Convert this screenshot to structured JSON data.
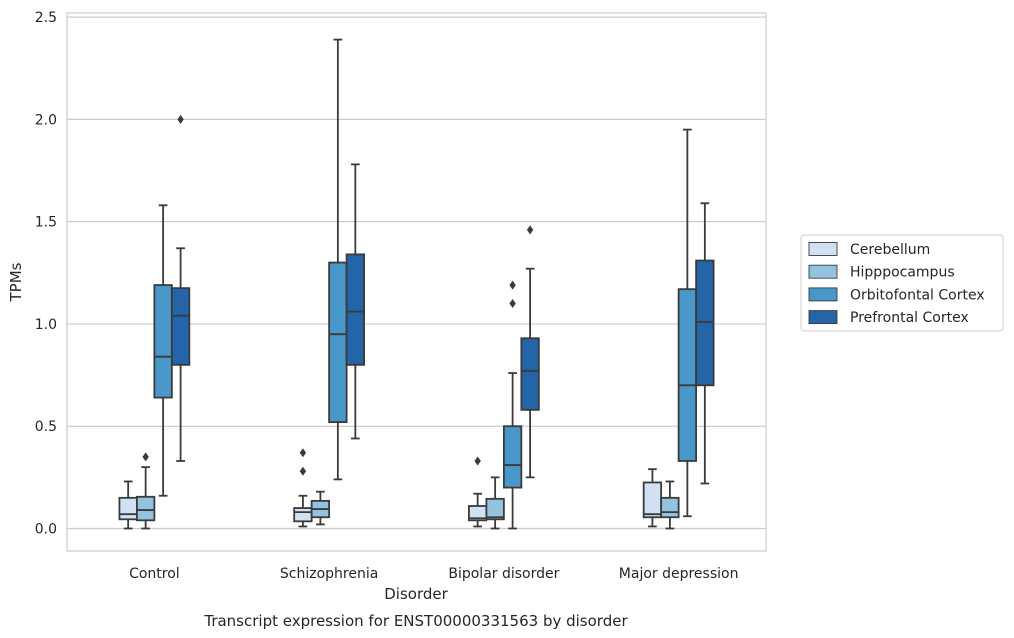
{
  "chart_data": {
    "type": "boxplot",
    "title": "",
    "caption": "Transcript expression for ENST00000331563 by disorder",
    "xlabel": "Disorder",
    "ylabel": "TPMs",
    "ylim": [
      -0.11,
      2.52
    ],
    "yticks": [
      "0.0",
      "0.5",
      "1.0",
      "1.5",
      "2.0",
      "2.5"
    ],
    "grid": true,
    "legend_position": "right",
    "categories": [
      "Control",
      "Schizophrenia",
      "Bipolar disorder",
      "Major depression"
    ],
    "series": [
      {
        "name": "Cerebellum",
        "color": "#cfe1f2",
        "boxes": [
          {
            "whisker_low": 0.0,
            "q1": 0.045,
            "median": 0.07,
            "q3": 0.15,
            "whisker_high": 0.23,
            "outliers": []
          },
          {
            "whisker_low": 0.01,
            "q1": 0.035,
            "median": 0.08,
            "q3": 0.1,
            "whisker_high": 0.16,
            "outliers": [
              0.37,
              0.28
            ]
          },
          {
            "whisker_low": 0.01,
            "q1": 0.04,
            "median": 0.05,
            "q3": 0.11,
            "whisker_high": 0.17,
            "outliers": [
              0.33
            ]
          },
          {
            "whisker_low": 0.01,
            "q1": 0.055,
            "median": 0.07,
            "q3": 0.225,
            "whisker_high": 0.29,
            "outliers": []
          }
        ]
      },
      {
        "name": "Hipppocampus",
        "color": "#93c3df",
        "boxes": [
          {
            "whisker_low": 0.0,
            "q1": 0.04,
            "median": 0.09,
            "q3": 0.155,
            "whisker_high": 0.3,
            "outliers": [
              0.35
            ]
          },
          {
            "whisker_low": 0.02,
            "q1": 0.055,
            "median": 0.095,
            "q3": 0.135,
            "whisker_high": 0.18,
            "outliers": []
          },
          {
            "whisker_low": 0.0,
            "q1": 0.045,
            "median": 0.055,
            "q3": 0.145,
            "whisker_high": 0.25,
            "outliers": []
          },
          {
            "whisker_low": 0.0,
            "q1": 0.055,
            "median": 0.08,
            "q3": 0.15,
            "whisker_high": 0.23,
            "outliers": []
          }
        ]
      },
      {
        "name": "Orbitofontal Cortex",
        "color": "#4a98c9",
        "boxes": [
          {
            "whisker_low": 0.16,
            "q1": 0.64,
            "median": 0.84,
            "q3": 1.19,
            "whisker_high": 1.58,
            "outliers": []
          },
          {
            "whisker_low": 0.24,
            "q1": 0.52,
            "median": 0.95,
            "q3": 1.3,
            "whisker_high": 2.39,
            "outliers": []
          },
          {
            "whisker_low": 0.0,
            "q1": 0.2,
            "median": 0.31,
            "q3": 0.5,
            "whisker_high": 0.76,
            "outliers": [
              1.19,
              1.1
            ]
          },
          {
            "whisker_low": 0.06,
            "q1": 0.33,
            "median": 0.7,
            "q3": 1.17,
            "whisker_high": 1.95,
            "outliers": []
          }
        ]
      },
      {
        "name": "Prefrontal Cortex",
        "color": "#2464a8",
        "boxes": [
          {
            "whisker_low": 0.33,
            "q1": 0.8,
            "median": 1.04,
            "q3": 1.175,
            "whisker_high": 1.37,
            "outliers": [
              2.0
            ]
          },
          {
            "whisker_low": 0.44,
            "q1": 0.8,
            "median": 1.06,
            "q3": 1.34,
            "whisker_high": 1.78,
            "outliers": []
          },
          {
            "whisker_low": 0.25,
            "q1": 0.58,
            "median": 0.77,
            "q3": 0.93,
            "whisker_high": 1.27,
            "outliers": [
              1.46
            ]
          },
          {
            "whisker_low": 0.22,
            "q1": 0.7,
            "median": 1.01,
            "q3": 1.31,
            "whisker_high": 1.59,
            "outliers": []
          }
        ]
      }
    ]
  }
}
